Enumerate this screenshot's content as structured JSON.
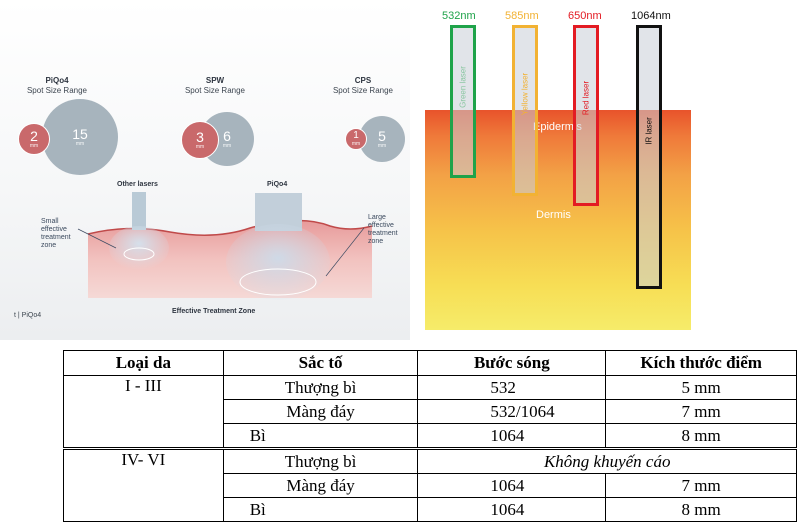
{
  "left_figure": {
    "groups": [
      {
        "title": "PiQo4",
        "subtitle": "Spot Size Range",
        "small": "2",
        "large": "15",
        "unit": "mm"
      },
      {
        "title": "SPW",
        "subtitle": "Spot Size Range",
        "small": "3",
        "large": "6",
        "unit": "mm"
      },
      {
        "title": "CPS",
        "subtitle": "Spot Size Range",
        "small": "1",
        "large": "5",
        "unit": "mm"
      }
    ],
    "other_lasers": "Other lasers",
    "piqo4": "PiQo4",
    "small_zone": [
      "Small",
      "effective",
      "treatment",
      "zone"
    ],
    "large_zone": [
      "Large",
      "effective",
      "treatment",
      "zone"
    ],
    "footer": "Effective Treatment Zone",
    "brand_mark": "t | PiQo4"
  },
  "right_figure": {
    "wavelengths": [
      {
        "label": "532nm",
        "laser": "Green laser",
        "color": "#1fa34a"
      },
      {
        "label": "585nm",
        "laser": "Yellow laser",
        "color": "#f2b233"
      },
      {
        "label": "650nm",
        "laser": "Red laser",
        "color": "#e31b23"
      },
      {
        "label": "1064nm",
        "laser": "IR laser",
        "color": "#111111"
      }
    ],
    "epidermis": "Epidermis",
    "dermis": "Dermis"
  },
  "table": {
    "headers": [
      "Loại da",
      "Sắc tố",
      "Bước sóng",
      "Kích thước điểm"
    ],
    "group1": {
      "skin_type": "I - III",
      "rows": [
        {
          "pigment": "Thượng bì",
          "wavelength": "532",
          "spot": "5 mm"
        },
        {
          "pigment": "Màng đáy",
          "wavelength": "532/1064",
          "spot": "7 mm"
        },
        {
          "pigment": "Bì",
          "wavelength": "1064",
          "spot": "8 mm"
        }
      ]
    },
    "group2": {
      "skin_type": "IV- VI",
      "rows": [
        {
          "pigment": "Thượng bì",
          "note": "Không khuyến cáo"
        },
        {
          "pigment": "Màng đáy",
          "wavelength": "1064",
          "spot": "7 mm"
        },
        {
          "pigment": "Bì",
          "wavelength": "1064",
          "spot": "8 mm"
        }
      ]
    }
  }
}
